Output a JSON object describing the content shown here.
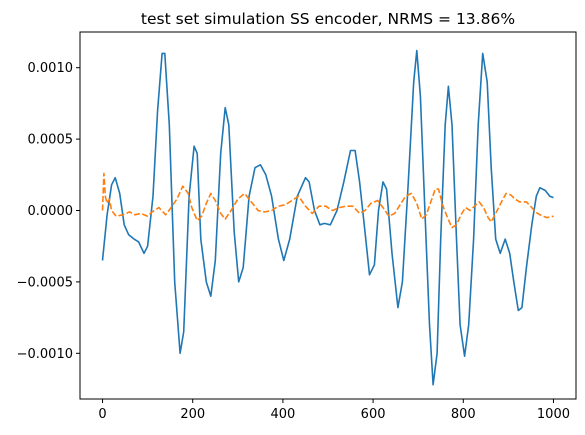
{
  "chart_data": {
    "type": "line",
    "title": "test set simulation SS encoder, NRMS = 13.86%",
    "xlabel": "",
    "ylabel": "",
    "xlim": [
      -50,
      1050
    ],
    "ylim": [
      -0.00132,
      0.00125
    ],
    "x_ticks": [
      0,
      200,
      400,
      600,
      800,
      1000
    ],
    "x_tick_labels": [
      "0",
      "200",
      "400",
      "600",
      "800",
      "1000"
    ],
    "y_ticks": [
      -0.001,
      -0.0005,
      0.0,
      0.0005,
      0.001
    ],
    "y_tick_labels": [
      "−0.0010",
      "−0.0005",
      "0.0000",
      "0.0005",
      "0.0010"
    ],
    "grid": false,
    "series": [
      {
        "color": "#1f77b4",
        "style": "solid",
        "points": [
          [
            0,
            -0.00035
          ],
          [
            10,
            -3e-05
          ],
          [
            20,
            0.00018
          ],
          [
            28,
            0.00023
          ],
          [
            38,
            0.00012
          ],
          [
            48,
            -0.0001
          ],
          [
            58,
            -0.00017
          ],
          [
            70,
            -0.0002
          ],
          [
            80,
            -0.00022
          ],
          [
            92,
            -0.0003
          ],
          [
            100,
            -0.00025
          ],
          [
            112,
            0.0001
          ],
          [
            122,
            0.0007
          ],
          [
            132,
            0.0011
          ],
          [
            138,
            0.0011
          ],
          [
            148,
            0.0006
          ],
          [
            160,
            -0.0005
          ],
          [
            172,
            -0.001
          ],
          [
            180,
            -0.00085
          ],
          [
            192,
            0.0001
          ],
          [
            203,
            0.00045
          ],
          [
            210,
            0.0004
          ],
          [
            218,
            -0.0002
          ],
          [
            230,
            -0.0005
          ],
          [
            240,
            -0.0006
          ],
          [
            250,
            -0.00035
          ],
          [
            262,
            0.0004
          ],
          [
            272,
            0.00072
          ],
          [
            280,
            0.0006
          ],
          [
            292,
            -0.00015
          ],
          [
            302,
            -0.0005
          ],
          [
            312,
            -0.0004
          ],
          [
            325,
            0.0001
          ],
          [
            338,
            0.0003
          ],
          [
            350,
            0.00032
          ],
          [
            362,
            0.00025
          ],
          [
            375,
            0.0001
          ],
          [
            390,
            -0.0002
          ],
          [
            402,
            -0.00035
          ],
          [
            415,
            -0.0002
          ],
          [
            432,
            0.0001
          ],
          [
            450,
            0.00023
          ],
          [
            458,
            0.0002
          ],
          [
            470,
            0.0
          ],
          [
            482,
            -0.0001
          ],
          [
            492,
            -9e-05
          ],
          [
            505,
            -0.0001
          ],
          [
            520,
            0.0
          ],
          [
            535,
            0.0002
          ],
          [
            550,
            0.00042
          ],
          [
            560,
            0.00042
          ],
          [
            570,
            0.0002
          ],
          [
            582,
            -0.00015
          ],
          [
            592,
            -0.00045
          ],
          [
            603,
            -0.00038
          ],
          [
            612,
            0.0
          ],
          [
            622,
            0.0002
          ],
          [
            630,
            0.00015
          ],
          [
            642,
            -0.0003
          ],
          [
            655,
            -0.00068
          ],
          [
            665,
            -0.0005
          ],
          [
            678,
            0.0002
          ],
          [
            690,
            0.0009
          ],
          [
            697,
            0.00112
          ],
          [
            705,
            0.0008
          ],
          [
            715,
            0.0
          ],
          [
            725,
            -0.0008
          ],
          [
            733,
            -0.00122
          ],
          [
            742,
            -0.001
          ],
          [
            750,
            -0.0002
          ],
          [
            760,
            0.0006
          ],
          [
            767,
            0.00087
          ],
          [
            775,
            0.0006
          ],
          [
            785,
            -0.0002
          ],
          [
            793,
            -0.0008
          ],
          [
            803,
            -0.00102
          ],
          [
            812,
            -0.0008
          ],
          [
            823,
            -0.0002
          ],
          [
            833,
            0.0006
          ],
          [
            843,
            0.0011
          ],
          [
            853,
            0.0009
          ],
          [
            862,
            0.0003
          ],
          [
            872,
            -0.0002
          ],
          [
            882,
            -0.0003
          ],
          [
            893,
            -0.0002
          ],
          [
            903,
            -0.0003
          ],
          [
            912,
            -0.0005
          ],
          [
            922,
            -0.0007
          ],
          [
            930,
            -0.00068
          ],
          [
            940,
            -0.0004
          ],
          [
            952,
            -0.0001
          ],
          [
            962,
            0.0001
          ],
          [
            970,
            0.00016
          ],
          [
            982,
            0.00014
          ],
          [
            992,
            0.0001
          ],
          [
            1000,
            9e-05
          ]
        ]
      },
      {
        "color": "#ff7f0e",
        "style": "dashed",
        "points": [
          [
            0,
            0.0
          ],
          [
            3,
            0.00026
          ],
          [
            6,
            0.0001
          ],
          [
            10,
            5e-05
          ],
          [
            15,
            8e-05
          ],
          [
            20,
            0.0
          ],
          [
            30,
            -4e-05
          ],
          [
            45,
            -3e-05
          ],
          [
            60,
            -1e-05
          ],
          [
            72,
            -3e-05
          ],
          [
            85,
            -2e-05
          ],
          [
            100,
            -4e-05
          ],
          [
            110,
            -1e-05
          ],
          [
            125,
            2e-05
          ],
          [
            140,
            -3e-05
          ],
          [
            152,
            2e-05
          ],
          [
            165,
            8e-05
          ],
          [
            178,
            0.00017
          ],
          [
            190,
            0.00012
          ],
          [
            198,
            2e-05
          ],
          [
            210,
            -7e-05
          ],
          [
            220,
            -4e-05
          ],
          [
            230,
            5e-05
          ],
          [
            240,
            0.00012
          ],
          [
            250,
            7e-05
          ],
          [
            262,
            -2e-05
          ],
          [
            272,
            -6e-05
          ],
          [
            285,
            0.0
          ],
          [
            300,
            8e-05
          ],
          [
            315,
            0.00012
          ],
          [
            330,
            6e-05
          ],
          [
            345,
            0.0
          ],
          [
            360,
            -1e-05
          ],
          [
            375,
            0.0
          ],
          [
            390,
            3e-05
          ],
          [
            405,
            4e-05
          ],
          [
            420,
            7e-05
          ],
          [
            435,
            0.0001
          ],
          [
            450,
            3e-05
          ],
          [
            465,
            -2e-05
          ],
          [
            480,
            3e-05
          ],
          [
            495,
            3e-05
          ],
          [
            510,
            0.0
          ],
          [
            525,
            2e-05
          ],
          [
            540,
            3e-05
          ],
          [
            555,
            3e-05
          ],
          [
            570,
            -2e-05
          ],
          [
            582,
            0.0
          ],
          [
            595,
            5e-05
          ],
          [
            610,
            7e-05
          ],
          [
            622,
            2e-05
          ],
          [
            635,
            -4e-05
          ],
          [
            648,
            -2e-05
          ],
          [
            660,
            4e-05
          ],
          [
            672,
            0.0001
          ],
          [
            685,
            0.00012
          ],
          [
            697,
            5e-05
          ],
          [
            708,
            -6e-05
          ],
          [
            718,
            -3e-05
          ],
          [
            728,
            6e-05
          ],
          [
            738,
            0.00015
          ],
          [
            745,
            0.00015
          ],
          [
            755,
            3e-05
          ],
          [
            765,
            -5e-05
          ],
          [
            775,
            -0.00012
          ],
          [
            785,
            -0.0001
          ],
          [
            795,
            -3e-05
          ],
          [
            805,
            2e-05
          ],
          [
            815,
            0.0
          ],
          [
            825,
            3e-05
          ],
          [
            835,
            6e-05
          ],
          [
            845,
            2e-05
          ],
          [
            855,
            -5e-05
          ],
          [
            862,
            -8e-05
          ],
          [
            872,
            -2e-05
          ],
          [
            883,
            5e-05
          ],
          [
            895,
            0.00012
          ],
          [
            905,
            0.00011
          ],
          [
            915,
            8e-05
          ],
          [
            925,
            6e-05
          ],
          [
            940,
            6e-05
          ],
          [
            952,
            2e-05
          ],
          [
            960,
            -1e-05
          ],
          [
            970,
            -3e-05
          ],
          [
            985,
            -5e-05
          ],
          [
            1000,
            -4e-05
          ]
        ]
      }
    ]
  }
}
